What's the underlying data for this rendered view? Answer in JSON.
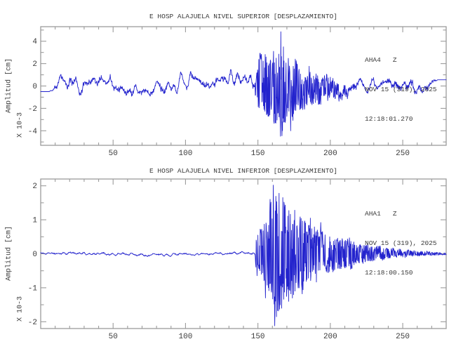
{
  "figure": {
    "background": "#ffffff",
    "axis_color": "#9b9b9b",
    "text_color": "#3a3a3a"
  },
  "chart_data": [
    {
      "type": "line",
      "kind": "seismogram",
      "title": "E HOSP ALAJUELA NIVEL SUPERIOR [DESPLAZAMIENTO]",
      "station": {
        "code": "AHA4   Z",
        "date": "NOV 15 (319), 2025",
        "time": "12:18:01.270"
      },
      "ylabel": "Amplitud [cm]",
      "scale_label": "X 10-3",
      "xlim": [
        0,
        280
      ],
      "ylim": [
        -5.3,
        5.3
      ],
      "xticks": [
        50,
        100,
        150,
        200,
        250
      ],
      "yticks": [
        -4,
        -2,
        0,
        2,
        4
      ],
      "x_minor_step": 10,
      "y_minor_step": 1,
      "legend": "none",
      "grid": false,
      "line_color": "#2323cd",
      "event": {
        "onset_x": 148,
        "peak_x": 166,
        "peak_max": 4.85,
        "peak_min": -4.45
      },
      "noise_floor": 0.6,
      "noise_smooth": 6,
      "wander": [
        [
          0.38,
          17.0,
          0.3
        ],
        [
          0.22,
          7.5,
          1.7
        ],
        [
          0.18,
          31.0,
          4.0
        ]
      ],
      "baseline": [
        [
          0,
          -0.5
        ],
        [
          7,
          -0.5
        ],
        [
          11,
          0
        ],
        [
          266,
          0
        ],
        [
          271,
          0.55
        ],
        [
          280,
          0.55
        ]
      ],
      "gate_in": [
        6,
        11
      ],
      "gate_out": [
        270,
        274
      ],
      "event_envelope": [
        [
          146,
          0
        ],
        [
          148,
          0.5
        ],
        [
          150,
          2.2
        ],
        [
          153,
          2.5
        ],
        [
          158,
          2.7
        ],
        [
          162,
          2.9
        ],
        [
          165,
          3.6
        ],
        [
          167,
          3.8
        ],
        [
          170,
          3.0
        ],
        [
          174,
          2.6
        ],
        [
          178,
          2.0
        ],
        [
          184,
          1.6
        ],
        [
          192,
          1.2
        ],
        [
          200,
          0.9
        ],
        [
          208,
          0.5
        ],
        [
          216,
          0.15
        ],
        [
          222,
          0
        ]
      ],
      "spikes": [
        [
          151.2,
          2.35
        ],
        [
          157.0,
          -2.7
        ],
        [
          160.8,
          3.1
        ],
        [
          163.2,
          -3.05
        ],
        [
          165.8,
          4.85
        ],
        [
          166.6,
          -4.45
        ],
        [
          167.6,
          3.5
        ],
        [
          169.0,
          -3.1
        ],
        [
          172.6,
          -4.0
        ],
        [
          175.8,
          2.4
        ],
        [
          181.0,
          -2.1
        ]
      ],
      "seed": 7,
      "points_per_unit": 5
    },
    {
      "type": "line",
      "kind": "seismogram",
      "title": "E HOSP ALAJUELA NIVEL INFERIOR [DESPLAZAMIENTO]",
      "station": {
        "code": "AHA1   Z",
        "date": "NOV 15 (319), 2025",
        "time": "12:18:00.150"
      },
      "ylabel": "Amplitud [cm]",
      "scale_label": "X 10-3",
      "xlim": [
        0,
        280
      ],
      "ylim": [
        -2.2,
        2.2
      ],
      "xticks": [
        50,
        100,
        150,
        200,
        250
      ],
      "yticks": [
        -2,
        -1,
        0,
        1,
        2
      ],
      "x_minor_step": 10,
      "y_minor_step": 0.5,
      "legend": "none",
      "grid": false,
      "line_color": "#2323cd",
      "event": {
        "onset_x": 149,
        "peak_x": 161,
        "peak_max": 2.02,
        "peak_min": -2.12
      },
      "noise_floor": 0.04,
      "noise_smooth": 5,
      "wander": [
        [
          0.015,
          19.0,
          0.8
        ]
      ],
      "baseline": [],
      "gate_in": null,
      "gate_out": [
        266,
        271
      ],
      "event_envelope": [
        [
          148,
          0
        ],
        [
          149,
          0.75
        ],
        [
          152,
          0.8
        ],
        [
          156,
          1.0
        ],
        [
          159,
          1.6
        ],
        [
          161,
          2.0
        ],
        [
          163,
          1.9
        ],
        [
          166,
          1.75
        ],
        [
          169,
          1.5
        ],
        [
          173,
          1.3
        ],
        [
          178,
          1.15
        ],
        [
          185,
          0.9
        ],
        [
          192,
          0.8
        ],
        [
          198,
          0.55
        ],
        [
          205,
          0.45
        ],
        [
          212,
          0.5
        ],
        [
          220,
          0.3
        ],
        [
          230,
          0.22
        ],
        [
          242,
          0.13
        ],
        [
          255,
          0.08
        ],
        [
          270,
          0.05
        ],
        [
          280,
          0.03
        ]
      ],
      "spikes": [
        [
          155.2,
          -1.3
        ],
        [
          158.4,
          1.6
        ],
        [
          160.6,
          2.02
        ],
        [
          161.6,
          -2.12
        ],
        [
          162.8,
          -1.85
        ],
        [
          164.6,
          1.78
        ],
        [
          166.4,
          -1.6
        ],
        [
          168.0,
          1.52
        ],
        [
          171.2,
          -1.4
        ],
        [
          175.4,
          1.28
        ],
        [
          180.6,
          -1.18
        ],
        [
          186.2,
          1.05
        ],
        [
          193.4,
          0.92
        ]
      ],
      "seed": 11,
      "points_per_unit": 5
    }
  ]
}
